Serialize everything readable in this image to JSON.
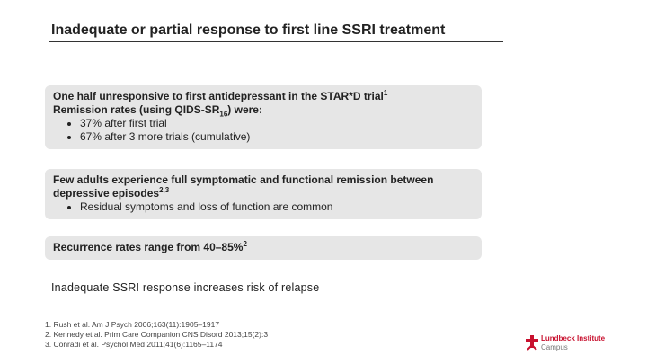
{
  "title": "Inadequate or partial response to first line SSRI treatment",
  "boxes": [
    {
      "lines": [
        {
          "text": "One half unresponsive to first antidepressant in the STAR*D trial",
          "sup": "1"
        },
        {
          "text": "Remission rates (using QIDS-SR",
          "sub": "16",
          "after": ") were:"
        }
      ],
      "bullets": [
        "37% after first trial",
        "67% after 3 more trials (cumulative)"
      ]
    },
    {
      "lines": [
        {
          "text": "Few adults experience full symptomatic and functional remission between depressive episodes",
          "sup": "2,3"
        }
      ],
      "bullets": [
        "Residual symptoms and loss of function are common"
      ]
    },
    {
      "lines": [
        {
          "text": "Recurrence rates range from 40–85%",
          "sup": "2"
        }
      ]
    }
  ],
  "statement": "Inadequate SSRI response increases risk of relapse",
  "references": [
    "1. Rush et al. Am J Psych 2006;163(11):1905–1917",
    "2. Kennedy et al. Prim Care Companion CNS Disord 2013;15(2):3",
    "3. Conradi et al. Psychol Med 2011;41(6):1165–1174"
  ],
  "logo": {
    "name": "Lundbeck Institute",
    "tagline": "Campus"
  }
}
